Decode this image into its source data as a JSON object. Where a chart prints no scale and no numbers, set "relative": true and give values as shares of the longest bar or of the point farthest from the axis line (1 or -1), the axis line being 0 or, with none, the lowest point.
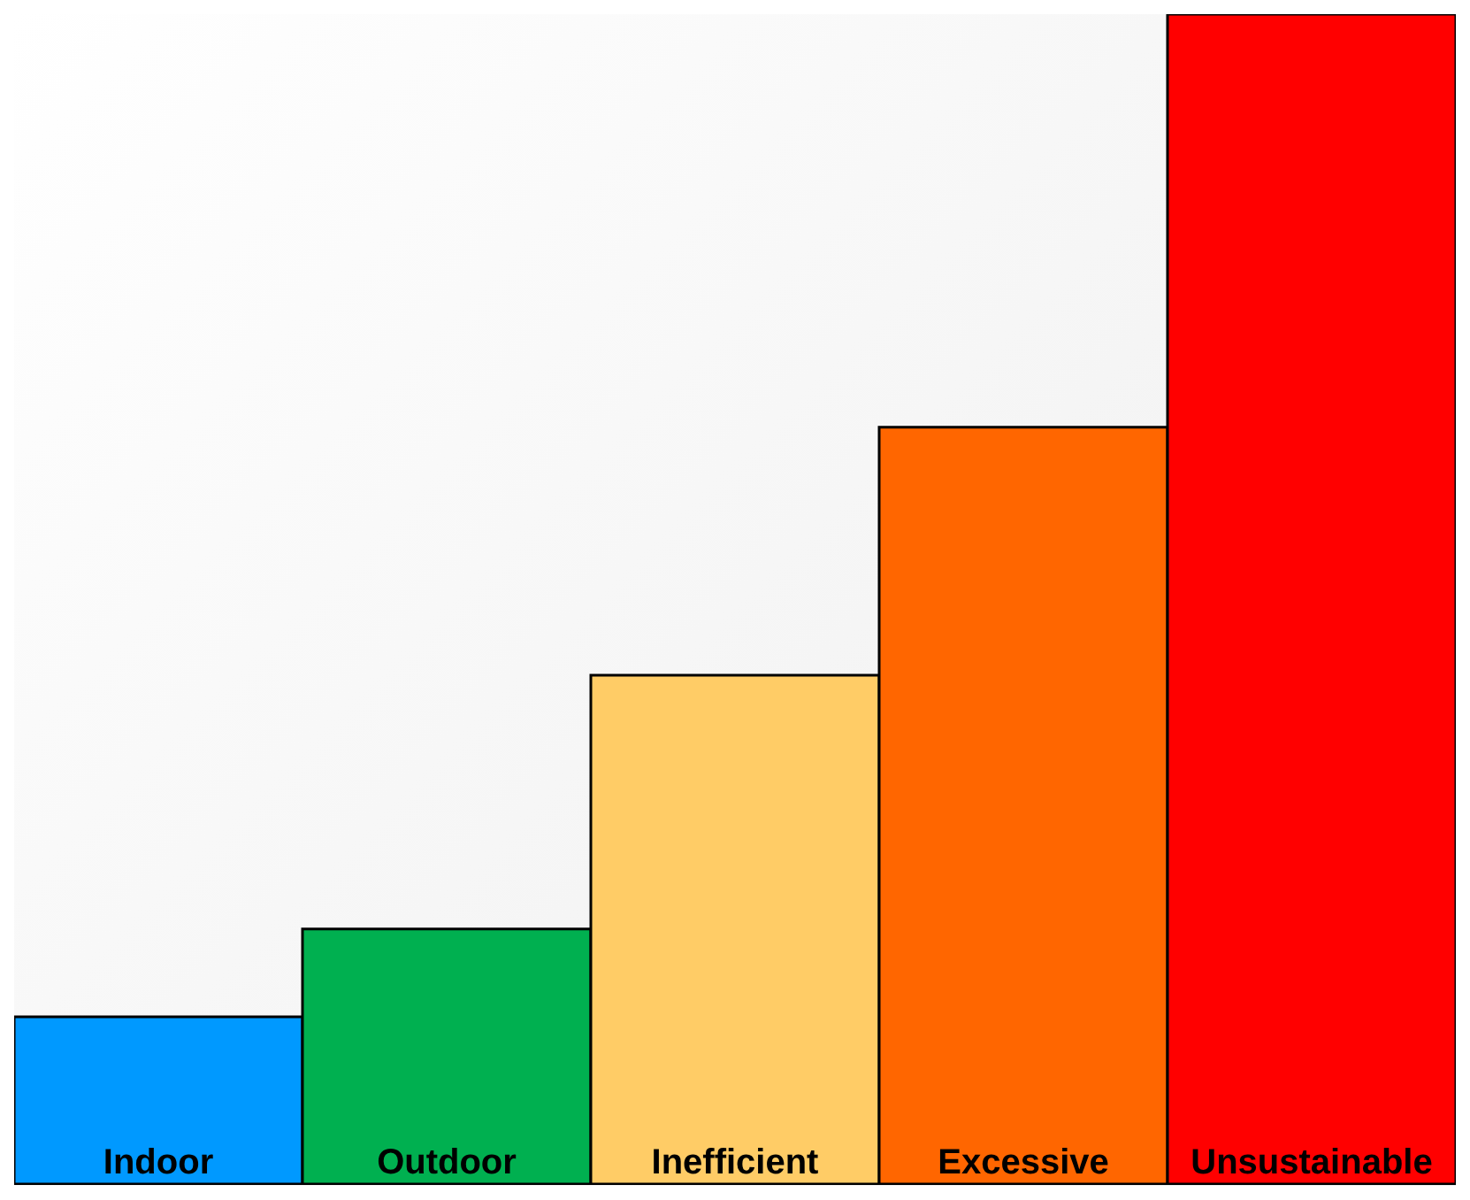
{
  "chart_data": {
    "type": "bar",
    "relative": true,
    "categories": [
      "Indoor",
      "Outdoor",
      "Inefficient",
      "Excessive",
      "Unsustainable"
    ],
    "values": [
      0.143,
      0.218,
      0.435,
      0.647,
      1
    ],
    "colors": [
      "#0099ff",
      "#00b050",
      "#ffcc66",
      "#ff6600",
      "#ff0000"
    ],
    "grid": false,
    "legend": false
  }
}
